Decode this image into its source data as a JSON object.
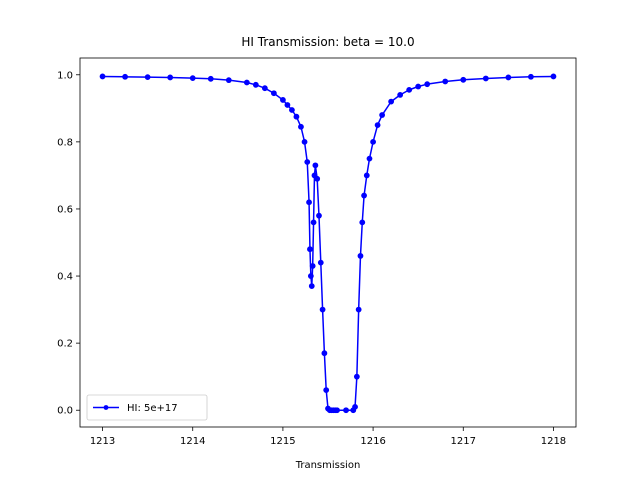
{
  "chart_data": {
    "type": "line",
    "title": "HI Transmission: beta = 10.0",
    "xlabel": "Transmission",
    "ylabel": "",
    "xlim": [
      1212.75,
      1218.25
    ],
    "ylim": [
      -0.05,
      1.05
    ],
    "xticks": [
      1213,
      1214,
      1215,
      1216,
      1217,
      1218
    ],
    "xtick_labels": [
      "1213",
      "1214",
      "1215",
      "1216",
      "1217",
      "1218"
    ],
    "yticks": [
      0.0,
      0.2,
      0.4,
      0.6,
      0.8,
      1.0
    ],
    "ytick_labels": [
      "0.0",
      "0.2",
      "0.4",
      "0.6",
      "0.8",
      "1.0"
    ],
    "grid": false,
    "legend_position": "lower-left",
    "series": [
      {
        "name": "HI: 5e+17",
        "color": "#0000ff",
        "marker": "circle",
        "x": [
          1213.0,
          1213.25,
          1213.5,
          1213.75,
          1214.0,
          1214.2,
          1214.4,
          1214.6,
          1214.7,
          1214.8,
          1214.9,
          1215.0,
          1215.05,
          1215.1,
          1215.15,
          1215.2,
          1215.24,
          1215.27,
          1215.29,
          1215.3,
          1215.31,
          1215.32,
          1215.33,
          1215.34,
          1215.35,
          1215.36,
          1215.38,
          1215.4,
          1215.42,
          1215.44,
          1215.46,
          1215.48,
          1215.5,
          1215.52,
          1215.54,
          1215.56,
          1215.58,
          1215.6,
          1215.7,
          1215.78,
          1215.8,
          1215.82,
          1215.84,
          1215.86,
          1215.88,
          1215.9,
          1215.93,
          1215.96,
          1216.0,
          1216.05,
          1216.1,
          1216.2,
          1216.3,
          1216.4,
          1216.5,
          1216.6,
          1216.8,
          1217.0,
          1217.25,
          1217.5,
          1217.75,
          1218.0
        ],
        "y": [
          0.995,
          0.994,
          0.993,
          0.992,
          0.99,
          0.988,
          0.984,
          0.977,
          0.97,
          0.96,
          0.945,
          0.925,
          0.91,
          0.895,
          0.875,
          0.845,
          0.8,
          0.74,
          0.62,
          0.48,
          0.4,
          0.37,
          0.43,
          0.56,
          0.7,
          0.73,
          0.69,
          0.58,
          0.44,
          0.3,
          0.17,
          0.06,
          0.005,
          0.0,
          0.0,
          0.0,
          0.0,
          0.0,
          0.0,
          0.0,
          0.01,
          0.1,
          0.3,
          0.46,
          0.56,
          0.64,
          0.7,
          0.75,
          0.8,
          0.85,
          0.88,
          0.92,
          0.94,
          0.955,
          0.965,
          0.972,
          0.98,
          0.985,
          0.989,
          0.992,
          0.994,
          0.995
        ]
      }
    ]
  }
}
